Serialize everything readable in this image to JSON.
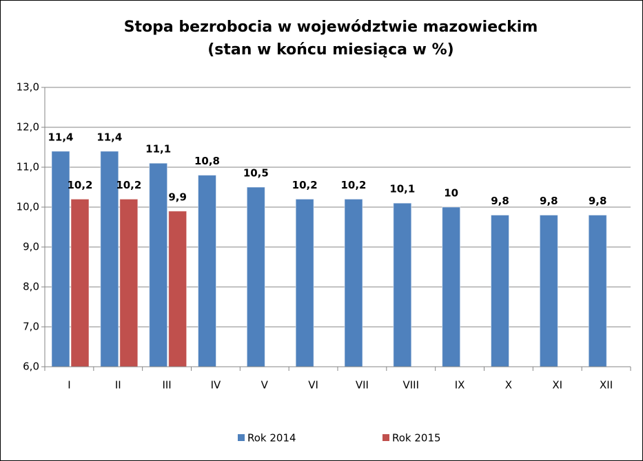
{
  "chart_data": {
    "type": "bar",
    "title": "Stopa bezrobocia w województwie mazowieckim",
    "subtitle": "(stan w końcu miesiąca w %)",
    "categories": [
      "I",
      "II",
      "III",
      "IV",
      "V",
      "VI",
      "VII",
      "VIII",
      "IX",
      "X",
      "XI",
      "XII"
    ],
    "series": [
      {
        "name": "Rok 2014",
        "color": "#4f81bd",
        "values": [
          11.4,
          11.4,
          11.1,
          10.8,
          10.5,
          10.2,
          10.2,
          10.1,
          10,
          9.8,
          9.8,
          9.8
        ],
        "value_labels": [
          "11,4",
          "11,4",
          "11,1",
          "10,8",
          "10,5",
          "10,2",
          "10,2",
          "10,1",
          "10",
          "9,8",
          "9,8",
          "9,8"
        ]
      },
      {
        "name": "Rok 2015",
        "color": "#c0504d",
        "values": [
          10.2,
          10.2,
          9.9,
          null,
          null,
          null,
          null,
          null,
          null,
          null,
          null,
          null
        ],
        "value_labels": [
          "10,2",
          "10,2",
          "9,9",
          null,
          null,
          null,
          null,
          null,
          null,
          null,
          null,
          null
        ]
      }
    ],
    "ylim": [
      6,
      13
    ],
    "yticks": [
      {
        "value": 6,
        "label": "6,0"
      },
      {
        "value": 7,
        "label": "7,0"
      },
      {
        "value": 8,
        "label": "8,0"
      },
      {
        "value": 9,
        "label": "9,0"
      },
      {
        "value": 10,
        "label": "10,0"
      },
      {
        "value": 11,
        "label": "11,0"
      },
      {
        "value": 12,
        "label": "12,0"
      },
      {
        "value": 13,
        "label": "13,0"
      }
    ],
    "grid": true,
    "legend": "bottom"
  }
}
